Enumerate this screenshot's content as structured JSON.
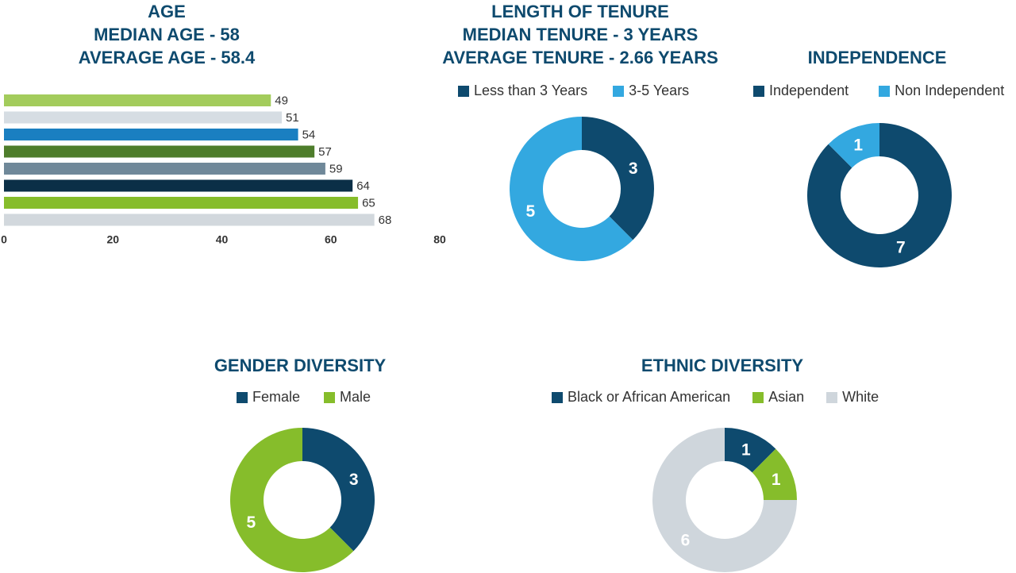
{
  "chart_data": [
    {
      "id": "age",
      "type": "bar",
      "orientation": "horizontal",
      "title_lines": [
        "AGE",
        "MEDIAN AGE - 58",
        "AVERAGE AGE - 58.4"
      ],
      "values": [
        49,
        51,
        54,
        57,
        59,
        64,
        65,
        68
      ],
      "colors": [
        "#a3cc5c",
        "#d6dde3",
        "#1a7fc1",
        "#4e7d2b",
        "#6f8899",
        "#0b2f47",
        "#86bd2b",
        "#d2d8dd"
      ],
      "xlim": [
        0,
        80
      ],
      "xticks": [
        "0",
        "20",
        "40",
        "60",
        "80"
      ],
      "grid": false
    },
    {
      "id": "tenure",
      "type": "pie",
      "donut": true,
      "title_lines": [
        "LENGTH OF TENURE",
        "MEDIAN TENURE - 3 YEARS",
        "AVERAGE TENURE - 2.66 YEARS"
      ],
      "labels": [
        "Less than 3 Years",
        "3-5 Years"
      ],
      "values": [
        3,
        5
      ],
      "colors": [
        "#0e4a6e",
        "#33a8e0"
      ],
      "legend": "top"
    },
    {
      "id": "independence",
      "type": "pie",
      "donut": true,
      "title_lines": [
        "INDEPENDENCE"
      ],
      "labels": [
        "Independent",
        "Non Independent"
      ],
      "values": [
        7,
        1
      ],
      "colors": [
        "#0e4a6e",
        "#33a8e0"
      ],
      "legend": "top"
    },
    {
      "id": "gender",
      "type": "pie",
      "donut": true,
      "title_lines": [
        "GENDER DIVERSITY"
      ],
      "labels": [
        "Female",
        "Male"
      ],
      "values": [
        3,
        5
      ],
      "colors": [
        "#0e4a6e",
        "#86bd2b"
      ],
      "legend": "top"
    },
    {
      "id": "ethnic",
      "type": "pie",
      "donut": true,
      "title_lines": [
        "ETHNIC DIVERSITY"
      ],
      "labels": [
        "Black or African American",
        "Asian",
        "White"
      ],
      "values": [
        1,
        1,
        6
      ],
      "colors": [
        "#0e4a6e",
        "#86bd2b",
        "#cfd6dc"
      ],
      "legend": "top"
    }
  ]
}
